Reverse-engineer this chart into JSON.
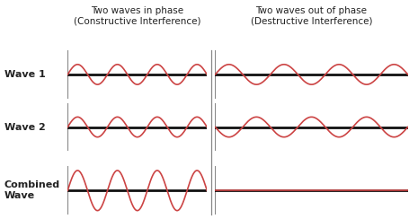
{
  "title_left": "Two waves in phase\n(Constructive Interference)",
  "title_right": "Two waves out of phase\n(Destructive Interference)",
  "wave1_label": "Wave 1",
  "wave2_label": "Wave 2",
  "combined_label": "Combined\nWave",
  "background_color": "#ffffff",
  "wave_color": "#cc4444",
  "baseline_color": "#111111",
  "divider_color": "#aaaaaa",
  "vline_color": "#888888",
  "amplitude": 1.0,
  "combined_amplitude": 2.0,
  "frequency": 3.5,
  "num_points": 600,
  "title_fontsize": 7.5,
  "label_fontsize": 8.0,
  "baseline_lw": 2.0,
  "wave_lw": 1.2
}
